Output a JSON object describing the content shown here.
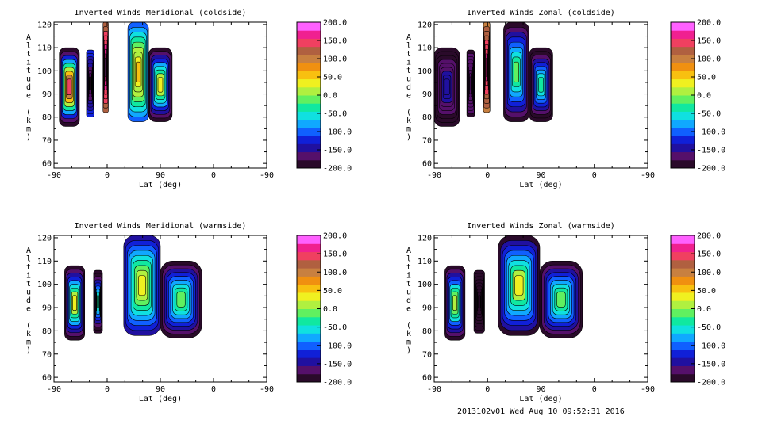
{
  "palette": [
    "#2a0a2a",
    "#55106a",
    "#2010a0",
    "#1020d8",
    "#1060ff",
    "#10a8ff",
    "#10e0e0",
    "#10e8a0",
    "#60f060",
    "#b0f040",
    "#f0f020",
    "#f8c010",
    "#f09010",
    "#c88040",
    "#b06040",
    "#f04060",
    "#f02090",
    "#ff60ff"
  ],
  "footer": "2013102v01 Wed Aug 10 09:52:31 2016",
  "chart_data": [
    {
      "type": "heatmap",
      "title": "Inverted Winds Meridional (coldside)",
      "xlabel": "Lat (deg)",
      "ylabel": "Altitude (km)",
      "xticks": [
        "-90",
        "0",
        "90",
        "0",
        "-90"
      ],
      "yticks": [
        60,
        70,
        80,
        90,
        100,
        110,
        120
      ],
      "ylim": [
        58,
        121
      ],
      "colorbar": {
        "range": [
          -200,
          200
        ],
        "ticks": [
          "200.0",
          "150.0",
          "100.0",
          "50.0",
          "0.0",
          "-50.0",
          "-100.0",
          "-150.0",
          "-200.0"
        ]
      },
      "regions": [
        {
          "x": [
            -81,
            -47
          ],
          "y": [
            76,
            110
          ],
          "peak": 150,
          "edge": -200
        },
        {
          "x": [
            -35,
            -22
          ],
          "y": [
            80,
            109
          ],
          "peak": -180,
          "edge": -120
        },
        {
          "x": [
            -7,
            2
          ],
          "y": [
            82,
            121
          ],
          "peak": 180,
          "edge": 120
        },
        {
          "x": [
            35,
            70
          ],
          "y": [
            78,
            121
          ],
          "peak": 60,
          "edge": -100
        },
        {
          "x": [
            70,
            110
          ],
          "y": [
            78,
            110
          ],
          "peak": 30,
          "edge": -200
        }
      ]
    },
    {
      "type": "heatmap",
      "title": "Inverted Winds Zonal (coldside)",
      "xlabel": "Lat (deg)",
      "ylabel": "Altitude (km)",
      "xticks": [
        "-90",
        "0",
        "90",
        "0",
        "-90"
      ],
      "yticks": [
        60,
        70,
        80,
        90,
        100,
        110,
        120
      ],
      "ylim": [
        58,
        121
      ],
      "colorbar": {
        "range": [
          -200,
          200
        ],
        "ticks": [
          "200.0",
          "150.0",
          "100.0",
          "50.0",
          "0.0",
          "-50.0",
          "-100.0",
          "-150.0",
          "-200.0"
        ]
      },
      "regions": [
        {
          "x": [
            -90,
            -47
          ],
          "y": [
            76,
            110
          ],
          "peak": -140,
          "edge": -200
        },
        {
          "x": [
            -35,
            -22
          ],
          "y": [
            80,
            109
          ],
          "peak": -160,
          "edge": -180
        },
        {
          "x": [
            -7,
            4
          ],
          "y": [
            82,
            121
          ],
          "peak": 170,
          "edge": 110
        },
        {
          "x": [
            27,
            70
          ],
          "y": [
            78,
            121
          ],
          "peak": -20,
          "edge": -180
        },
        {
          "x": [
            70,
            110
          ],
          "y": [
            78,
            110
          ],
          "peak": -30,
          "edge": -200
        }
      ]
    },
    {
      "type": "heatmap",
      "title": "Inverted Winds Meridional (warmside)",
      "xlabel": "Lat (deg)",
      "ylabel": "Altitude (km)",
      "xticks": [
        "-90",
        "0",
        "90",
        "0",
        "-90"
      ],
      "yticks": [
        60,
        70,
        80,
        90,
        100,
        110,
        120
      ],
      "ylim": [
        58,
        121
      ],
      "colorbar": {
        "range": [
          -200,
          200
        ],
        "ticks": [
          "200.0",
          "150.0",
          "100.0",
          "50.0",
          "0.0",
          "-50.0",
          "-100.0",
          "-150.0",
          "-200.0"
        ]
      },
      "regions": [
        {
          "x": [
            -72,
            -38
          ],
          "y": [
            76,
            108
          ],
          "peak": 30,
          "edge": -200
        },
        {
          "x": [
            -23,
            -8
          ],
          "y": [
            79,
            106
          ],
          "peak": -30,
          "edge": -200
        },
        {
          "x": [
            28,
            90
          ],
          "y": [
            78,
            121
          ],
          "peak": 40,
          "edge": -150
        },
        {
          "x": [
            90,
            160
          ],
          "y": [
            77,
            110
          ],
          "peak": -10,
          "edge": -180
        }
      ]
    },
    {
      "type": "heatmap",
      "title": "Inverted Winds Zonal (warmside)",
      "xlabel": "Lat (deg)",
      "ylabel": "Altitude (km)",
      "xticks": [
        "-90",
        "0",
        "90",
        "0",
        "-90"
      ],
      "yticks": [
        60,
        70,
        80,
        90,
        100,
        110,
        120
      ],
      "ylim": [
        58,
        121
      ],
      "colorbar": {
        "range": [
          -200,
          200
        ],
        "ticks": [
          "200.0",
          "150.0",
          "100.0",
          "50.0",
          "0.0",
          "-50.0",
          "-100.0",
          "-150.0",
          "-200.0"
        ]
      },
      "regions": [
        {
          "x": [
            -72,
            -38
          ],
          "y": [
            76,
            108
          ],
          "peak": 20,
          "edge": -200
        },
        {
          "x": [
            -23,
            -5
          ],
          "y": [
            79,
            106
          ],
          "peak": -180,
          "edge": -200
        },
        {
          "x": [
            18,
            88
          ],
          "y": [
            78,
            121
          ],
          "peak": 30,
          "edge": -180
        },
        {
          "x": [
            88,
            160
          ],
          "y": [
            77,
            110
          ],
          "peak": -10,
          "edge": -180
        }
      ]
    }
  ]
}
